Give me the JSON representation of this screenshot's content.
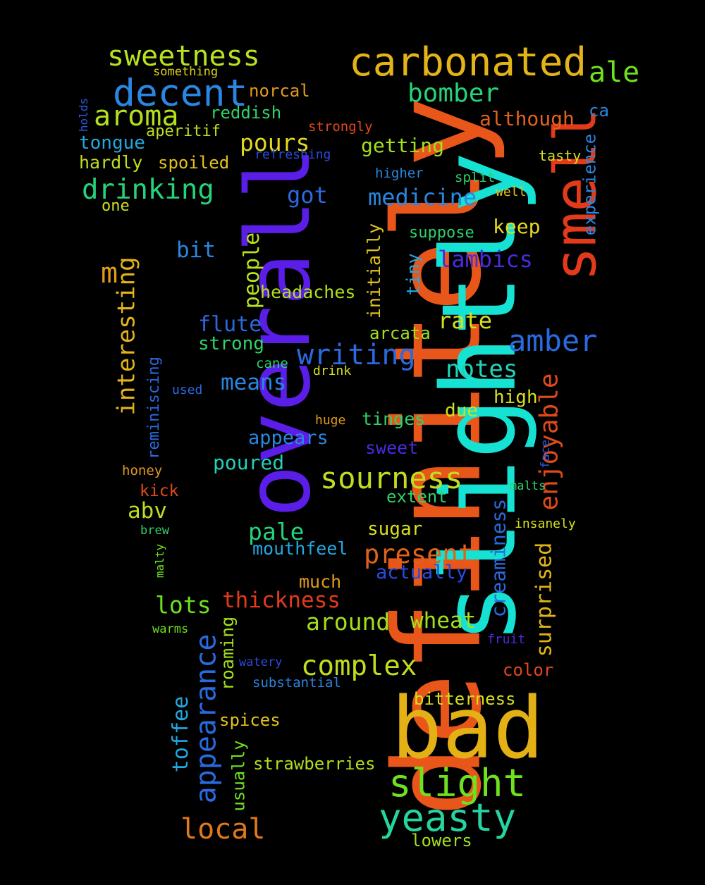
{
  "words": [
    {
      "text": "definitely",
      "color": "#e9561a"
    },
    {
      "text": "slightly",
      "color": "#16e2d4"
    },
    {
      "text": "overall",
      "color": "#5a1ee8"
    },
    {
      "text": "smell",
      "color": "#e23a1a"
    },
    {
      "text": "bad",
      "color": "#e3b116"
    },
    {
      "text": "carbonated",
      "color": "#e3b418"
    },
    {
      "text": "decent",
      "color": "#2a86e0"
    },
    {
      "text": "sweetness",
      "color": "#b9e21e"
    },
    {
      "text": "ale",
      "color": "#6ee21e"
    },
    {
      "text": "aroma",
      "color": "#b2e01c"
    },
    {
      "text": "bomber",
      "color": "#25d47a"
    },
    {
      "text": "norcal",
      "color": "#e09a1c"
    },
    {
      "text": "reddish",
      "color": "#2ed26a"
    },
    {
      "text": "something",
      "color": "#d9d21c"
    },
    {
      "text": "although",
      "color": "#e0621a"
    },
    {
      "text": "ca",
      "color": "#2a86e0"
    },
    {
      "text": "holds",
      "color": "#2a5ae0"
    },
    {
      "text": "aperitif",
      "color": "#c2dd1e"
    },
    {
      "text": "strongly",
      "color": "#e0491a"
    },
    {
      "text": "tongue",
      "color": "#22a8e0"
    },
    {
      "text": "pours",
      "color": "#e3da1c"
    },
    {
      "text": "getting",
      "color": "#a3e01c"
    },
    {
      "text": "refreshing",
      "color": "#2a4ae0"
    },
    {
      "text": "tasty",
      "color": "#d6e01c"
    },
    {
      "text": "experience",
      "color": "#2a86e0"
    },
    {
      "text": "hardly",
      "color": "#c2dd1e"
    },
    {
      "text": "spoiled",
      "color": "#e3c11c"
    },
    {
      "text": "higher",
      "color": "#2a86e0"
    },
    {
      "text": "split",
      "color": "#2ed26a"
    },
    {
      "text": "drinking",
      "color": "#25d47a"
    },
    {
      "text": "one",
      "color": "#cce01c"
    },
    {
      "text": "got",
      "color": "#2a6ae0"
    },
    {
      "text": "medicine",
      "color": "#2a86e0"
    },
    {
      "text": "well",
      "color": "#e3c11c"
    },
    {
      "text": "keep",
      "color": "#e3da1c"
    },
    {
      "text": "suppose",
      "color": "#2ed26a"
    },
    {
      "text": "m",
      "color": "#e09a1c"
    },
    {
      "text": "interesting",
      "color": "#e3b418"
    },
    {
      "text": "bit",
      "color": "#2a86e0"
    },
    {
      "text": "people",
      "color": "#b9e21e"
    },
    {
      "text": "initially",
      "color": "#e3c11c"
    },
    {
      "text": "tiny",
      "color": "#22a8e0"
    },
    {
      "text": "lambics",
      "color": "#4a2ae0"
    },
    {
      "text": "headaches",
      "color": "#b2e01c"
    },
    {
      "text": "flute",
      "color": "#2a6ae0"
    },
    {
      "text": "rate",
      "color": "#d6e01c"
    },
    {
      "text": "amber",
      "color": "#2a6ae0"
    },
    {
      "text": "strong",
      "color": "#2ed26a"
    },
    {
      "text": "arcata",
      "color": "#a3e01c"
    },
    {
      "text": "reminiscing",
      "color": "#2a6ae0"
    },
    {
      "text": "writing",
      "color": "#2a6ae0"
    },
    {
      "text": "enjoyable",
      "color": "#e0491a"
    },
    {
      "text": "cane",
      "color": "#2ed26a"
    },
    {
      "text": "drink",
      "color": "#d6e01c"
    },
    {
      "text": "notes",
      "color": "#22d2b8"
    },
    {
      "text": "means",
      "color": "#2a86e0"
    },
    {
      "text": "used",
      "color": "#2a6ae0"
    },
    {
      "text": "high",
      "color": "#d6e01c"
    },
    {
      "text": "due",
      "color": "#cce01c"
    },
    {
      "text": "appears",
      "color": "#2a86e0"
    },
    {
      "text": "huge",
      "color": "#e09a1c"
    },
    {
      "text": "tinges",
      "color": "#2ed26a"
    },
    {
      "text": "sweet",
      "color": "#4a2ae0"
    },
    {
      "text": "face",
      "color": "#2a5ae0"
    },
    {
      "text": "poured",
      "color": "#22d2b8"
    },
    {
      "text": "sourness",
      "color": "#c2dd1e"
    },
    {
      "text": "honey",
      "color": "#e09a1c"
    },
    {
      "text": "kick",
      "color": "#e0491a"
    },
    {
      "text": "malts",
      "color": "#2ed26a"
    },
    {
      "text": "creaminess",
      "color": "#2a6ae0"
    },
    {
      "text": "extent",
      "color": "#2ed26a"
    },
    {
      "text": "abv",
      "color": "#c2dd1e"
    },
    {
      "text": "brew",
      "color": "#2ed26a"
    },
    {
      "text": "insanely",
      "color": "#d6e01c"
    },
    {
      "text": "pale",
      "color": "#25d47a"
    },
    {
      "text": "sugar",
      "color": "#d6e01c"
    },
    {
      "text": "malty",
      "color": "#6ee21e"
    },
    {
      "text": "mouthfeel",
      "color": "#22a8e0"
    },
    {
      "text": "present",
      "color": "#e0621a"
    },
    {
      "text": "surprised",
      "color": "#e3b418"
    },
    {
      "text": "actually",
      "color": "#2a4ae0"
    },
    {
      "text": "much",
      "color": "#e09a1c"
    },
    {
      "text": "lots",
      "color": "#6ee21e"
    },
    {
      "text": "thickness",
      "color": "#e23a1a"
    },
    {
      "text": "warms",
      "color": "#6ee21e"
    },
    {
      "text": "around",
      "color": "#a3e01c"
    },
    {
      "text": "wheat",
      "color": "#a3e01c"
    },
    {
      "text": "fruit",
      "color": "#4a2ae0"
    },
    {
      "text": "appearance",
      "color": "#2a6ae0"
    },
    {
      "text": "roaming",
      "color": "#a3e01c"
    },
    {
      "text": "complex",
      "color": "#c2dd1e"
    },
    {
      "text": "watery",
      "color": "#2a4ae0"
    },
    {
      "text": "color",
      "color": "#e0491a"
    },
    {
      "text": "substantial",
      "color": "#2a86e0"
    },
    {
      "text": "toffee",
      "color": "#22a8e0"
    },
    {
      "text": "bitterness",
      "color": "#d6e01c"
    },
    {
      "text": "spices",
      "color": "#e3c11c"
    },
    {
      "text": "usually",
      "color": "#6ee21e"
    },
    {
      "text": "strawberries",
      "color": "#b2e01c"
    },
    {
      "text": "slight",
      "color": "#6ee21e"
    },
    {
      "text": "yeasty",
      "color": "#25d4a0"
    },
    {
      "text": "local",
      "color": "#e0791a"
    },
    {
      "text": "lowers",
      "color": "#a3e01c"
    }
  ]
}
